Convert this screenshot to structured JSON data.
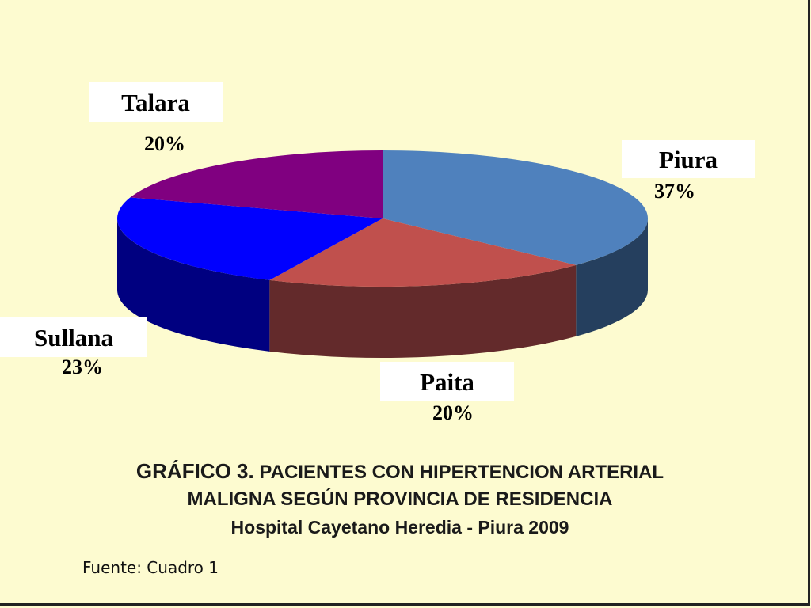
{
  "chart_data": {
    "type": "pie",
    "style": "3d",
    "slices": [
      {
        "label": "Piura",
        "value": 37,
        "display": "37%",
        "color": "#4f81bd",
        "side_color": "#253f5e"
      },
      {
        "label": "Paita",
        "value": 20,
        "display": "20%",
        "color": "#c0504d",
        "side_color": "#632a2b"
      },
      {
        "label": "Sullana",
        "value": 23,
        "display": "23%",
        "color": "#0000ff",
        "side_color": "#000080"
      },
      {
        "label": "Talara",
        "value": 20,
        "display": "20%",
        "color": "#800080",
        "side_color": "#4d004d"
      }
    ],
    "title_prefix": "GRÁFICO 3.",
    "title_rest": " PACIENTES CON HIPERTENCION ARTERIAL",
    "title_line2": "MALIGNA SEGÚN PROVINCIA DE RESIDENCIA",
    "subtitle": "Hospital Cayetano Heredia - Piura 2009",
    "source": "Fuente: Cuadro 1"
  }
}
